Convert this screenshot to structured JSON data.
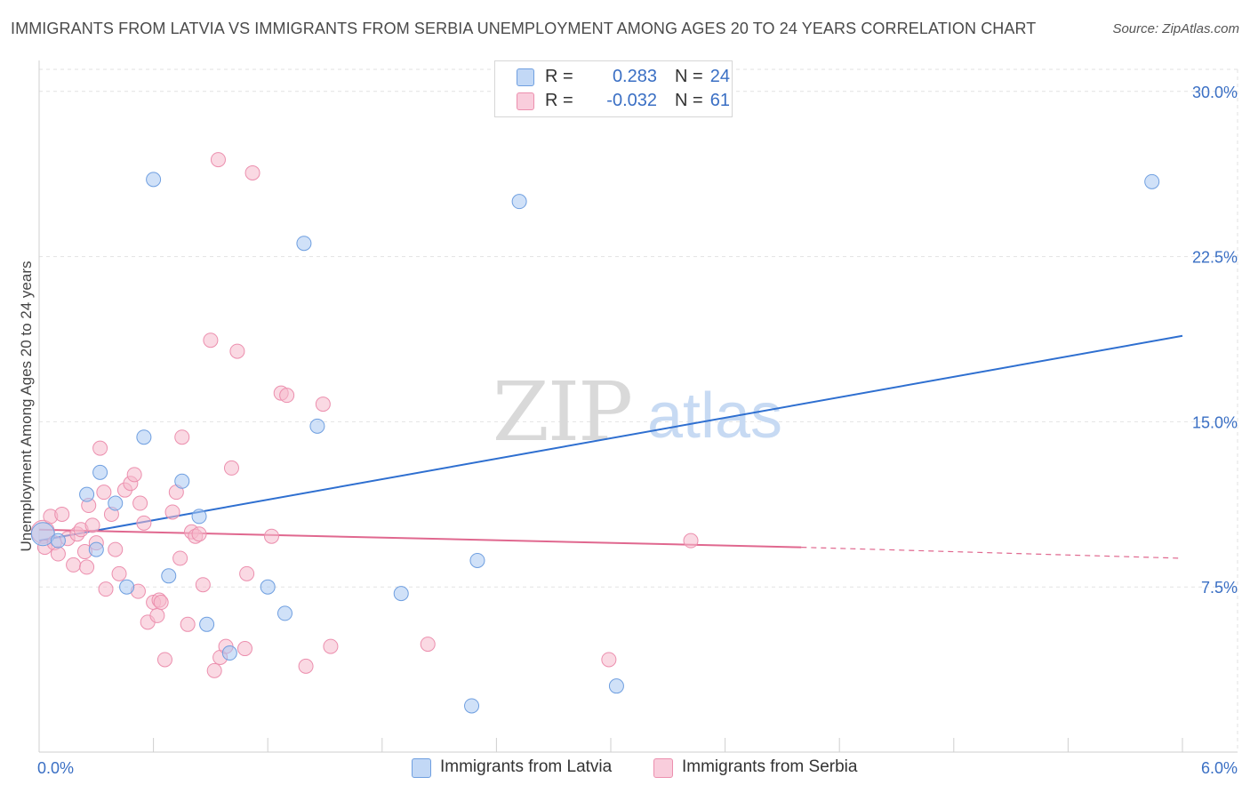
{
  "title": "IMMIGRANTS FROM LATVIA VS IMMIGRANTS FROM SERBIA UNEMPLOYMENT AMONG AGES 20 TO 24 YEARS CORRELATION CHART",
  "source": "Source: ZipAtlas.com",
  "watermark": {
    "zip": "ZIP",
    "atlas": "atlas"
  },
  "legend": {
    "latvia": {
      "r_label": "R =",
      "r_value": "0.283",
      "n_label": "N =",
      "n_value": "24"
    },
    "serbia": {
      "r_label": "R =",
      "r_value": "-0.032",
      "n_label": "N =",
      "n_value": "61"
    }
  },
  "colors": {
    "latvia_fill": "#a9c8f2",
    "latvia_stroke": "#6f9fe0",
    "latvia_line": "#2e6fd0",
    "serbia_fill": "#f6b9cc",
    "serbia_stroke": "#ec8fae",
    "serbia_line": "#e0688f",
    "axis_text": "#3a6fc4"
  },
  "chart_data": {
    "type": "scatter",
    "title": "IMMIGRANTS FROM LATVIA VS IMMIGRANTS FROM SERBIA UNEMPLOYMENT AMONG AGES 20 TO 24 YEARS CORRELATION CHART",
    "xlabel": "",
    "ylabel": "Unemployment Among Ages 20 to 24 years",
    "xlim": [
      0,
      6
    ],
    "ylim": [
      0,
      31
    ],
    "x_tick_labels": [
      "0.0%",
      "6.0%"
    ],
    "y_ticks": [
      7.5,
      15.0,
      22.5,
      30.0
    ],
    "y_tick_labels": [
      "7.5%",
      "15.0%",
      "22.5%",
      "30.0%"
    ],
    "series": [
      {
        "name": "Immigrants from Latvia",
        "points": [
          {
            "x": 0.02,
            "y": 9.9
          },
          {
            "x": 0.1,
            "y": 9.6
          },
          {
            "x": 0.3,
            "y": 9.2
          },
          {
            "x": 0.25,
            "y": 11.7
          },
          {
            "x": 0.32,
            "y": 12.7
          },
          {
            "x": 0.4,
            "y": 11.3
          },
          {
            "x": 0.46,
            "y": 7.5
          },
          {
            "x": 0.55,
            "y": 14.3
          },
          {
            "x": 0.6,
            "y": 26.0
          },
          {
            "x": 0.68,
            "y": 8.0
          },
          {
            "x": 0.75,
            "y": 12.3
          },
          {
            "x": 0.84,
            "y": 10.7
          },
          {
            "x": 0.88,
            "y": 5.8
          },
          {
            "x": 1.0,
            "y": 4.5
          },
          {
            "x": 1.2,
            "y": 7.5
          },
          {
            "x": 1.29,
            "y": 6.3
          },
          {
            "x": 1.39,
            "y": 23.1
          },
          {
            "x": 1.46,
            "y": 14.8
          },
          {
            "x": 1.9,
            "y": 7.2
          },
          {
            "x": 2.3,
            "y": 8.7
          },
          {
            "x": 2.27,
            "y": 2.1
          },
          {
            "x": 2.52,
            "y": 25.0
          },
          {
            "x": 3.03,
            "y": 3.0
          },
          {
            "x": 5.84,
            "y": 25.9
          }
        ],
        "trend": {
          "x0": 0.0,
          "y0": 9.6,
          "x1": 6.0,
          "y1": 18.9
        }
      },
      {
        "name": "Immigrants from Serbia",
        "points": [
          {
            "x": 0.02,
            "y": 10.0
          },
          {
            "x": 0.03,
            "y": 9.3
          },
          {
            "x": 0.06,
            "y": 10.7
          },
          {
            "x": 0.08,
            "y": 9.5
          },
          {
            "x": 0.1,
            "y": 9.0
          },
          {
            "x": 0.12,
            "y": 10.8
          },
          {
            "x": 0.15,
            "y": 9.7
          },
          {
            "x": 0.18,
            "y": 8.5
          },
          {
            "x": 0.2,
            "y": 9.9
          },
          {
            "x": 0.22,
            "y": 10.1
          },
          {
            "x": 0.24,
            "y": 9.1
          },
          {
            "x": 0.25,
            "y": 8.4
          },
          {
            "x": 0.26,
            "y": 11.2
          },
          {
            "x": 0.28,
            "y": 10.3
          },
          {
            "x": 0.3,
            "y": 9.5
          },
          {
            "x": 0.32,
            "y": 13.8
          },
          {
            "x": 0.34,
            "y": 11.8
          },
          {
            "x": 0.35,
            "y": 7.4
          },
          {
            "x": 0.38,
            "y": 10.8
          },
          {
            "x": 0.4,
            "y": 9.2
          },
          {
            "x": 0.42,
            "y": 8.1
          },
          {
            "x": 0.45,
            "y": 11.9
          },
          {
            "x": 0.48,
            "y": 12.2
          },
          {
            "x": 0.5,
            "y": 12.6
          },
          {
            "x": 0.52,
            "y": 7.3
          },
          {
            "x": 0.53,
            "y": 11.3
          },
          {
            "x": 0.55,
            "y": 10.4
          },
          {
            "x": 0.57,
            "y": 5.9
          },
          {
            "x": 0.6,
            "y": 6.8
          },
          {
            "x": 0.62,
            "y": 6.2
          },
          {
            "x": 0.63,
            "y": 6.9
          },
          {
            "x": 0.64,
            "y": 6.8
          },
          {
            "x": 0.66,
            "y": 4.2
          },
          {
            "x": 0.7,
            "y": 10.9
          },
          {
            "x": 0.72,
            "y": 11.8
          },
          {
            "x": 0.74,
            "y": 8.8
          },
          {
            "x": 0.75,
            "y": 14.3
          },
          {
            "x": 0.78,
            "y": 5.8
          },
          {
            "x": 0.8,
            "y": 10.0
          },
          {
            "x": 0.82,
            "y": 9.8
          },
          {
            "x": 0.84,
            "y": 9.9
          },
          {
            "x": 0.86,
            "y": 7.6
          },
          {
            "x": 0.9,
            "y": 18.7
          },
          {
            "x": 0.92,
            "y": 3.7
          },
          {
            "x": 0.94,
            "y": 26.9
          },
          {
            "x": 0.95,
            "y": 4.3
          },
          {
            "x": 0.98,
            "y": 4.8
          },
          {
            "x": 1.01,
            "y": 12.9
          },
          {
            "x": 1.04,
            "y": 18.2
          },
          {
            "x": 1.08,
            "y": 4.7
          },
          {
            "x": 1.09,
            "y": 8.1
          },
          {
            "x": 1.12,
            "y": 26.3
          },
          {
            "x": 1.22,
            "y": 9.8
          },
          {
            "x": 1.27,
            "y": 16.3
          },
          {
            "x": 1.3,
            "y": 16.2
          },
          {
            "x": 1.4,
            "y": 3.9
          },
          {
            "x": 1.49,
            "y": 15.8
          },
          {
            "x": 1.53,
            "y": 4.8
          },
          {
            "x": 2.04,
            "y": 4.9
          },
          {
            "x": 2.99,
            "y": 4.2
          },
          {
            "x": 3.42,
            "y": 9.6
          }
        ],
        "trend": {
          "x0": 0.0,
          "y0": 10.1,
          "x1": 4.0,
          "y1": 9.3
        },
        "trend_extension": {
          "x0": 4.0,
          "y0": 9.3,
          "x1": 6.0,
          "y1": 8.8
        }
      }
    ]
  },
  "bottom_legend": {
    "latvia_label": "Immigrants from Latvia",
    "serbia_label": "Immigrants from Serbia"
  }
}
